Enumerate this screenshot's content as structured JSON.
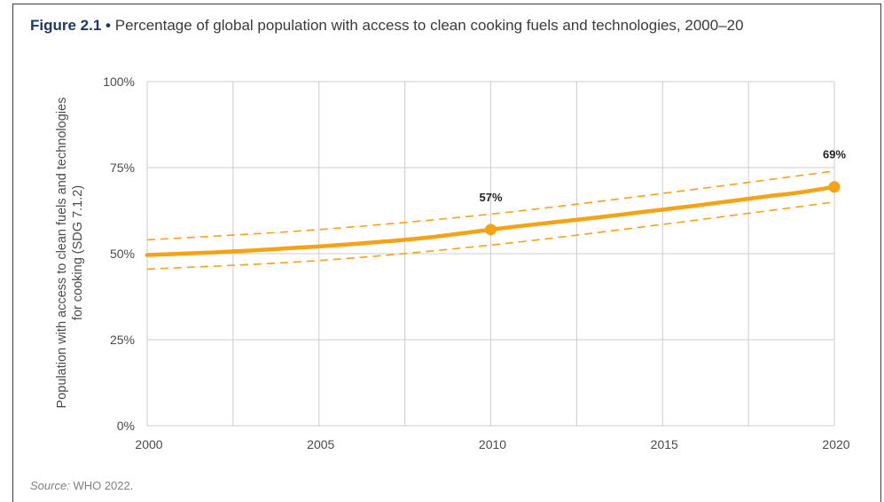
{
  "figure": {
    "number": "Figure 2.1",
    "bullet": "•",
    "title": "Percentage of global population with access to clean cooking fuels and technologies, 2000–20",
    "source_label": "Source:",
    "source_text": "WHO 2022."
  },
  "chart_data": {
    "type": "line",
    "title": "Percentage of global population with access to clean cooking fuels and technologies, 2000–20",
    "ylabel_line1": "Population with access to clean fuels and technologies",
    "ylabel_line2": "for cooking (SDG 7.1.2)",
    "xlabel": "",
    "xlim": [
      2000,
      2020
    ],
    "ylim": [
      0,
      100
    ],
    "x_ticks": [
      2000,
      2005,
      2010,
      2015,
      2020
    ],
    "x_tick_labels": [
      "2000",
      "2005",
      "2010",
      "2015",
      "2020"
    ],
    "y_ticks": [
      0,
      25,
      50,
      75,
      100
    ],
    "y_tick_labels": [
      "0%",
      "25%",
      "50%",
      "75%",
      "100%"
    ],
    "x_grid_years": [
      2000,
      2002.5,
      2005,
      2007.5,
      2010,
      2012.5,
      2015,
      2017.5,
      2020
    ],
    "grid": true,
    "colors": {
      "line": "#f5a214",
      "band": "#f5a214",
      "grid": "#cccccc"
    },
    "series": [
      {
        "x": [
          2000,
          2001,
          2002,
          2003,
          2004,
          2005,
          2006,
          2007,
          2008,
          2009,
          2010,
          2011,
          2012,
          2013,
          2014,
          2015,
          2016,
          2017,
          2018,
          2019,
          2020
        ],
        "values": [
          49.6,
          50.0,
          50.4,
          50.9,
          51.5,
          52.1,
          52.8,
          53.6,
          54.5,
          55.7,
          57.0,
          58.2,
          59.3,
          60.4,
          61.6,
          62.8,
          64.0,
          65.3,
          66.6,
          67.8,
          69.4
        ]
      }
    ],
    "upper_bound": {
      "x": [
        2000,
        2005,
        2010,
        2015,
        2020
      ],
      "values": [
        54.0,
        57.0,
        61.5,
        67.5,
        74.0
      ]
    },
    "lower_bound": {
      "x": [
        2000,
        2005,
        2010,
        2015,
        2020
      ],
      "values": [
        45.5,
        48.0,
        52.5,
        58.5,
        65.0
      ]
    },
    "markers": [
      {
        "x": 2010,
        "y": 57,
        "label": "57%"
      },
      {
        "x": 2020,
        "y": 69,
        "label": "69%"
      }
    ]
  }
}
